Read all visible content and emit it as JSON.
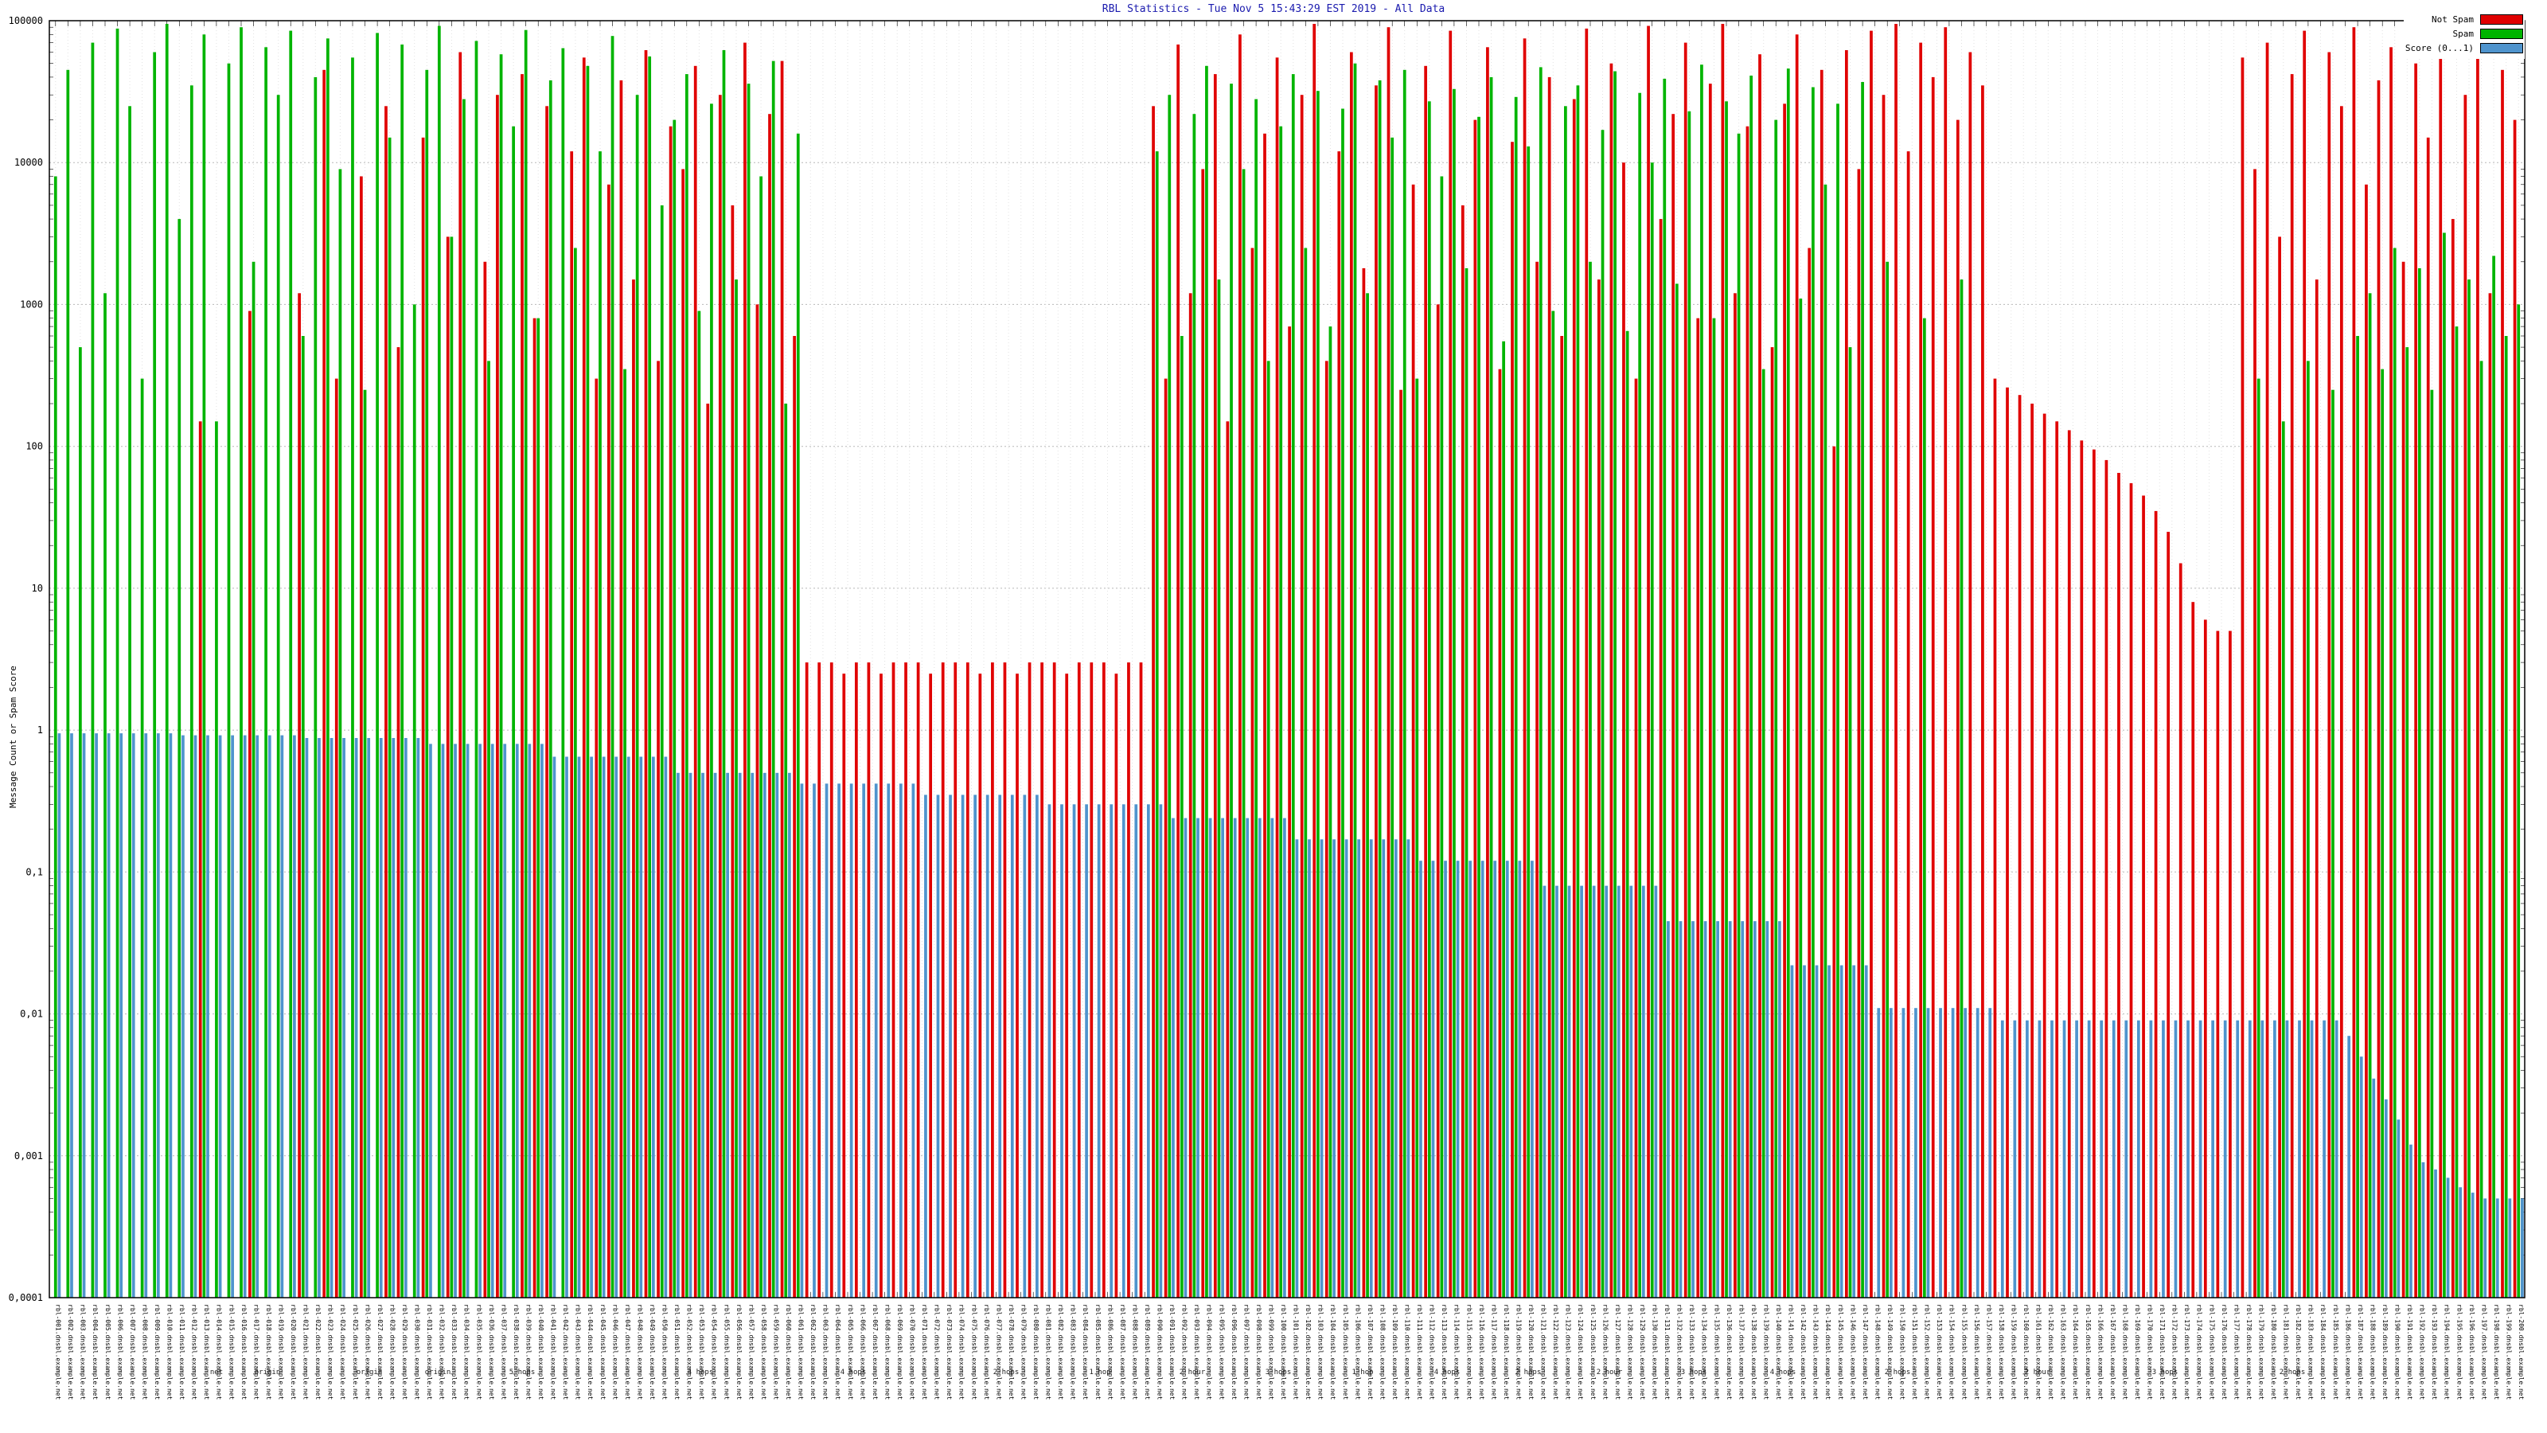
{
  "title": "RBL Statistics - Tue Nov 5 15:43:29 EST 2019 - All Data",
  "legend": [
    {
      "label": "Not Spam",
      "color": "#e00000"
    },
    {
      "label": "Spam",
      "color": "#00b400"
    },
    {
      "label": "Score (0...1)",
      "color": "#4f94cd"
    }
  ],
  "y_axis": {
    "label": "Message Count or Spam Score",
    "ticks": [
      "100000",
      "10000",
      "1000",
      "100",
      "10",
      "1",
      "0,1",
      "0,01",
      "0,001",
      "0,0001"
    ],
    "values": [
      100000,
      10000,
      1000,
      100,
      10,
      1,
      0.1,
      0.01,
      0.001,
      0.0001
    ]
  },
  "chart_data": {
    "type": "bar",
    "scale": "log",
    "ylim": [
      0.0001,
      100000
    ],
    "grid": true,
    "legend_position": "top-right",
    "categories": [
      "rbl-001.dnsbl.example.net",
      "rbl-002.dnsbl.example.net",
      "rbl-003.dnsbl.example.net",
      "rbl-004.dnsbl.example.net",
      "rbl-005.dnsbl.example.net",
      "rbl-006.dnsbl.example.net",
      "rbl-007.dnsbl.example.net",
      "rbl-008.dnsbl.example.net",
      "rbl-009.dnsbl.example.net",
      "rbl-010.dnsbl.example.net",
      "rbl-011.dnsbl.example.net",
      "rbl-012.dnsbl.example.net",
      "rbl-013.dnsbl.example.net",
      "rbl-014.dnsbl.example.net",
      "rbl-015.dnsbl.example.net",
      "rbl-016.dnsbl.example.net",
      "rbl-017.dnsbl.example.net",
      "rbl-018.dnsbl.example.net",
      "rbl-019.dnsbl.example.net",
      "rbl-020.dnsbl.example.net",
      "rbl-021.dnsbl.example.net",
      "rbl-022.dnsbl.example.net",
      "rbl-023.dnsbl.example.net",
      "rbl-024.dnsbl.example.net",
      "rbl-025.dnsbl.example.net",
      "rbl-026.dnsbl.example.net",
      "rbl-027.dnsbl.example.net",
      "rbl-028.dnsbl.example.net",
      "rbl-029.dnsbl.example.net",
      "rbl-030.dnsbl.example.net",
      "rbl-031.dnsbl.example.net",
      "rbl-032.dnsbl.example.net",
      "rbl-033.dnsbl.example.net",
      "rbl-034.dnsbl.example.net",
      "rbl-035.dnsbl.example.net",
      "rbl-036.dnsbl.example.net",
      "rbl-037.dnsbl.example.net",
      "rbl-038.dnsbl.example.net",
      "rbl-039.dnsbl.example.net",
      "rbl-040.dnsbl.example.net",
      "rbl-041.dnsbl.example.net",
      "rbl-042.dnsbl.example.net",
      "rbl-043.dnsbl.example.net",
      "rbl-044.dnsbl.example.net",
      "rbl-045.dnsbl.example.net",
      "rbl-046.dnsbl.example.net",
      "rbl-047.dnsbl.example.net",
      "rbl-048.dnsbl.example.net",
      "rbl-049.dnsbl.example.net",
      "rbl-050.dnsbl.example.net",
      "rbl-051.dnsbl.example.net",
      "rbl-052.dnsbl.example.net",
      "rbl-053.dnsbl.example.net",
      "rbl-054.dnsbl.example.net",
      "rbl-055.dnsbl.example.net",
      "rbl-056.dnsbl.example.net",
      "rbl-057.dnsbl.example.net",
      "rbl-058.dnsbl.example.net",
      "rbl-059.dnsbl.example.net",
      "rbl-060.dnsbl.example.net",
      "rbl-061.dnsbl.example.net",
      "rbl-062.dnsbl.example.net",
      "rbl-063.dnsbl.example.net",
      "rbl-064.dnsbl.example.net",
      "rbl-065.dnsbl.example.net",
      "rbl-066.dnsbl.example.net",
      "rbl-067.dnsbl.example.net",
      "rbl-068.dnsbl.example.net",
      "rbl-069.dnsbl.example.net",
      "rbl-070.dnsbl.example.net",
      "rbl-071.dnsbl.example.net",
      "rbl-072.dnsbl.example.net",
      "rbl-073.dnsbl.example.net",
      "rbl-074.dnsbl.example.net",
      "rbl-075.dnsbl.example.net",
      "rbl-076.dnsbl.example.net",
      "rbl-077.dnsbl.example.net",
      "rbl-078.dnsbl.example.net",
      "rbl-079.dnsbl.example.net",
      "rbl-080.dnsbl.example.net",
      "rbl-081.dnsbl.example.net",
      "rbl-082.dnsbl.example.net",
      "rbl-083.dnsbl.example.net",
      "rbl-084.dnsbl.example.net",
      "rbl-085.dnsbl.example.net",
      "rbl-086.dnsbl.example.net",
      "rbl-087.dnsbl.example.net",
      "rbl-088.dnsbl.example.net",
      "rbl-089.dnsbl.example.net",
      "rbl-090.dnsbl.example.net",
      "rbl-091.dnsbl.example.net",
      "rbl-092.dnsbl.example.net",
      "rbl-093.dnsbl.example.net",
      "rbl-094.dnsbl.example.net",
      "rbl-095.dnsbl.example.net",
      "rbl-096.dnsbl.example.net",
      "rbl-097.dnsbl.example.net",
      "rbl-098.dnsbl.example.net",
      "rbl-099.dnsbl.example.net",
      "rbl-100.dnsbl.example.net",
      "rbl-101.dnsbl.example.net",
      "rbl-102.dnsbl.example.net",
      "rbl-103.dnsbl.example.net",
      "rbl-104.dnsbl.example.net",
      "rbl-105.dnsbl.example.net",
      "rbl-106.dnsbl.example.net",
      "rbl-107.dnsbl.example.net",
      "rbl-108.dnsbl.example.net",
      "rbl-109.dnsbl.example.net",
      "rbl-110.dnsbl.example.net",
      "rbl-111.dnsbl.example.net",
      "rbl-112.dnsbl.example.net",
      "rbl-113.dnsbl.example.net",
      "rbl-114.dnsbl.example.net",
      "rbl-115.dnsbl.example.net",
      "rbl-116.dnsbl.example.net",
      "rbl-117.dnsbl.example.net",
      "rbl-118.dnsbl.example.net",
      "rbl-119.dnsbl.example.net",
      "rbl-120.dnsbl.example.net",
      "rbl-121.dnsbl.example.net",
      "rbl-122.dnsbl.example.net",
      "rbl-123.dnsbl.example.net",
      "rbl-124.dnsbl.example.net",
      "rbl-125.dnsbl.example.net",
      "rbl-126.dnsbl.example.net",
      "rbl-127.dnsbl.example.net",
      "rbl-128.dnsbl.example.net",
      "rbl-129.dnsbl.example.net",
      "rbl-130.dnsbl.example.net",
      "rbl-131.dnsbl.example.net",
      "rbl-132.dnsbl.example.net",
      "rbl-133.dnsbl.example.net",
      "rbl-134.dnsbl.example.net",
      "rbl-135.dnsbl.example.net",
      "rbl-136.dnsbl.example.net",
      "rbl-137.dnsbl.example.net",
      "rbl-138.dnsbl.example.net",
      "rbl-139.dnsbl.example.net",
      "rbl-140.dnsbl.example.net",
      "rbl-141.dnsbl.example.net",
      "rbl-142.dnsbl.example.net",
      "rbl-143.dnsbl.example.net",
      "rbl-144.dnsbl.example.net",
      "rbl-145.dnsbl.example.net",
      "rbl-146.dnsbl.example.net",
      "rbl-147.dnsbl.example.net",
      "rbl-148.dnsbl.example.net",
      "rbl-149.dnsbl.example.net",
      "rbl-150.dnsbl.example.net",
      "rbl-151.dnsbl.example.net",
      "rbl-152.dnsbl.example.net",
      "rbl-153.dnsbl.example.net",
      "rbl-154.dnsbl.example.net",
      "rbl-155.dnsbl.example.net",
      "rbl-156.dnsbl.example.net",
      "rbl-157.dnsbl.example.net",
      "rbl-158.dnsbl.example.net",
      "rbl-159.dnsbl.example.net",
      "rbl-160.dnsbl.example.net",
      "rbl-161.dnsbl.example.net",
      "rbl-162.dnsbl.example.net",
      "rbl-163.dnsbl.example.net",
      "rbl-164.dnsbl.example.net",
      "rbl-165.dnsbl.example.net",
      "rbl-166.dnsbl.example.net",
      "rbl-167.dnsbl.example.net",
      "rbl-168.dnsbl.example.net",
      "rbl-169.dnsbl.example.net",
      "rbl-170.dnsbl.example.net",
      "rbl-171.dnsbl.example.net",
      "rbl-172.dnsbl.example.net",
      "rbl-173.dnsbl.example.net",
      "rbl-174.dnsbl.example.net",
      "rbl-175.dnsbl.example.net",
      "rbl-176.dnsbl.example.net",
      "rbl-177.dnsbl.example.net",
      "rbl-178.dnsbl.example.net",
      "rbl-179.dnsbl.example.net",
      "rbl-180.dnsbl.example.net",
      "rbl-181.dnsbl.example.net",
      "rbl-182.dnsbl.example.net",
      "rbl-183.dnsbl.example.net",
      "rbl-184.dnsbl.example.net",
      "rbl-185.dnsbl.example.net",
      "rbl-186.dnsbl.example.net",
      "rbl-187.dnsbl.example.net",
      "rbl-188.dnsbl.example.net",
      "rbl-189.dnsbl.example.net",
      "rbl-190.dnsbl.example.net",
      "rbl-191.dnsbl.example.net",
      "rbl-192.dnsbl.example.net",
      "rbl-193.dnsbl.example.net",
      "rbl-194.dnsbl.example.net",
      "rbl-195.dnsbl.example.net",
      "rbl-196.dnsbl.example.net",
      "rbl-197.dnsbl.example.net",
      "rbl-198.dnsbl.example.net",
      "rbl-199.dnsbl.example.net",
      "rbl-200.dnsbl.example.net"
    ],
    "series": [
      {
        "name": "Not Spam",
        "color": "#e00000",
        "values": [
          0,
          0,
          0,
          0,
          0,
          0,
          0,
          0,
          0,
          0,
          0,
          0,
          150,
          0,
          0,
          0,
          900,
          0,
          0,
          0,
          1200,
          0,
          45000,
          300,
          0,
          8000,
          0,
          25000,
          500,
          0,
          15000,
          0,
          3000,
          60000,
          0,
          2000,
          30000,
          0,
          42000,
          800,
          25000,
          0,
          12000,
          55000,
          300,
          7000,
          38000,
          1500,
          62000,
          400,
          18000,
          9000,
          48000,
          200,
          30000,
          5000,
          70000,
          1000,
          22000,
          52000,
          600,
          3,
          3,
          3,
          2.5,
          3,
          3,
          2.5,
          3,
          3,
          3,
          2.5,
          3,
          3,
          3,
          2.5,
          3,
          3,
          2.5,
          3,
          3,
          3,
          2.5,
          3,
          3,
          3,
          2.5,
          3,
          3,
          25000,
          300,
          68000,
          1200,
          9000,
          42000,
          150,
          80000,
          2500,
          16000,
          55000,
          700,
          30000,
          95000,
          400,
          12000,
          60000,
          1800,
          35000,
          90000,
          250,
          7000,
          48000,
          1000,
          85000,
          5000,
          20000,
          65000,
          350,
          14000,
          75000,
          2000,
          40000,
          600,
          28000,
          88000,
          1500,
          50000,
          10000,
          300,
          92000,
          4000,
          22000,
          70000,
          800,
          36000,
          95000,
          1200,
          18000,
          58000,
          500,
          26000,
          80000,
          2500,
          45000,
          100,
          62000,
          9000,
          85000,
          30000,
          95000,
          12000,
          70000,
          40000,
          90000,
          20000,
          60000,
          35000,
          300,
          260,
          230,
          200,
          170,
          150,
          130,
          110,
          95,
          80,
          65,
          55,
          45,
          35,
          25,
          15,
          8,
          6,
          5,
          5,
          55000,
          9000,
          70000,
          3000,
          42000,
          85000,
          1500,
          60000,
          25000,
          90000,
          7000,
          38000,
          65000,
          2000,
          50000,
          15000,
          75000,
          4000,
          30000,
          58000,
          1200,
          45000,
          20000
        ]
      },
      {
        "name": "Spam",
        "color": "#00b400",
        "values": [
          8000,
          45000,
          500,
          70000,
          1200,
          88000,
          25000,
          300,
          60000,
          95000,
          4000,
          35000,
          80000,
          150,
          50000,
          90000,
          2000,
          65000,
          30000,
          85000,
          600,
          40000,
          75000,
          9000,
          55000,
          250,
          82000,
          15000,
          68000,
          1000,
          45000,
          92000,
          3000,
          28000,
          72000,
          400,
          58000,
          18000,
          86000,
          800,
          38000,
          64000,
          2500,
          48000,
          12000,
          78000,
          350,
          30000,
          56000,
          5000,
          20000,
          42000,
          900,
          26000,
          62000,
          1500,
          36000,
          8000,
          52000,
          200,
          16000,
          0,
          0,
          0,
          0,
          0,
          0,
          0,
          0,
          0,
          0,
          0,
          0,
          0,
          0,
          0,
          0,
          0,
          0,
          0,
          0,
          0,
          0,
          0,
          0,
          0,
          0,
          0,
          0,
          12000,
          30000,
          600,
          22000,
          48000,
          1500,
          36000,
          9000,
          28000,
          400,
          18000,
          42000,
          2500,
          32000,
          700,
          24000,
          50000,
          1200,
          38000,
          15000,
          45000,
          300,
          27000,
          8000,
          33000,
          1800,
          21000,
          40000,
          550,
          29000,
          13000,
          47000,
          900,
          25000,
          35000,
          2000,
          17000,
          44000,
          650,
          31000,
          10000,
          39000,
          1400,
          23000,
          49000,
          800,
          27000,
          16000,
          41000,
          350,
          20000,
          46000,
          1100,
          34000,
          7000,
          26000,
          500,
          37000,
          0,
          2000,
          0,
          0,
          800,
          0,
          0,
          1500,
          0,
          0,
          0,
          0,
          0,
          0,
          0,
          0,
          0,
          0,
          0,
          0,
          0,
          0,
          0,
          0,
          0,
          0,
          0,
          0,
          0,
          0,
          0,
          300,
          0,
          150,
          0,
          400,
          0,
          250,
          0,
          600,
          1200,
          350,
          2500,
          500,
          1800,
          250,
          3200,
          700,
          1500,
          400,
          2200,
          600,
          1000
        ]
      },
      {
        "name": "Score (0...1)",
        "color": "#4f94cd",
        "values": [
          0.95,
          0.95,
          0.95,
          0.95,
          0.95,
          0.95,
          0.95,
          0.95,
          0.95,
          0.95,
          0.92,
          0.92,
          0.92,
          0.92,
          0.92,
          0.92,
          0.92,
          0.92,
          0.92,
          0.92,
          0.88,
          0.88,
          0.88,
          0.88,
          0.88,
          0.88,
          0.88,
          0.88,
          0.88,
          0.88,
          0.8,
          0.8,
          0.8,
          0.8,
          0.8,
          0.8,
          0.8,
          0.8,
          0.8,
          0.8,
          0.65,
          0.65,
          0.65,
          0.65,
          0.65,
          0.65,
          0.65,
          0.65,
          0.65,
          0.65,
          0.5,
          0.5,
          0.5,
          0.5,
          0.5,
          0.5,
          0.5,
          0.5,
          0.5,
          0.5,
          0.42,
          0.42,
          0.42,
          0.42,
          0.42,
          0.42,
          0.42,
          0.42,
          0.42,
          0.42,
          0.35,
          0.35,
          0.35,
          0.35,
          0.35,
          0.35,
          0.35,
          0.35,
          0.35,
          0.35,
          0.3,
          0.3,
          0.3,
          0.3,
          0.3,
          0.3,
          0.3,
          0.3,
          0.3,
          0.3,
          0.24,
          0.24,
          0.24,
          0.24,
          0.24,
          0.24,
          0.24,
          0.24,
          0.24,
          0.24,
          0.17,
          0.17,
          0.17,
          0.17,
          0.17,
          0.17,
          0.17,
          0.17,
          0.17,
          0.17,
          0.12,
          0.12,
          0.12,
          0.12,
          0.12,
          0.12,
          0.12,
          0.12,
          0.12,
          0.12,
          0.08,
          0.08,
          0.08,
          0.08,
          0.08,
          0.08,
          0.08,
          0.08,
          0.08,
          0.08,
          0.045,
          0.045,
          0.045,
          0.045,
          0.045,
          0.045,
          0.045,
          0.045,
          0.045,
          0.045,
          0.022,
          0.022,
          0.022,
          0.022,
          0.022,
          0.022,
          0.022,
          0.011,
          0.011,
          0.011,
          0.011,
          0.011,
          0.011,
          0.011,
          0.011,
          0.011,
          0.011,
          0.009,
          0.009,
          0.009,
          0.009,
          0.009,
          0.009,
          0.009,
          0.009,
          0.009,
          0.009,
          0.009,
          0.009,
          0.009,
          0.009,
          0.009,
          0.009,
          0.009,
          0.009,
          0.009,
          0.009,
          0.009,
          0.009,
          0.009,
          0.009,
          0.009,
          0.009,
          0.009,
          0.009,
          0.007,
          0.005,
          0.0035,
          0.0025,
          0.0018,
          0.0012,
          0.0009,
          0.0008,
          0.0007,
          0.0006,
          0.00055,
          0.0005,
          0.0005,
          0.0005,
          0.0005
        ]
      }
    ],
    "x_axis_annotations": [
      {
        "x": 0.085,
        "text": "net"
      },
      {
        "x": 0.105,
        "text": "origin"
      },
      {
        "x": 0.145,
        "text": "origin"
      },
      {
        "x": 0.172,
        "text": "origin"
      },
      {
        "x": 0.205,
        "text": "5 hops"
      },
      {
        "x": 0.275,
        "text": "4 hops"
      },
      {
        "x": 0.335,
        "text": "4 hops"
      },
      {
        "x": 0.395,
        "text": "2 hops"
      },
      {
        "x": 0.432,
        "text": "1 hop"
      },
      {
        "x": 0.468,
        "text": "2 hour"
      },
      {
        "x": 0.502,
        "text": "3 hops"
      },
      {
        "x": 0.535,
        "text": "1 hop"
      },
      {
        "x": 0.568,
        "text": "4 hops"
      },
      {
        "x": 0.6,
        "text": "2 hops"
      },
      {
        "x": 0.632,
        "text": "2 hour"
      },
      {
        "x": 0.665,
        "text": "3 hops"
      },
      {
        "x": 0.7,
        "text": "4 hops"
      },
      {
        "x": 0.745,
        "text": "2 hops"
      },
      {
        "x": 0.8,
        "text": "2 hour"
      },
      {
        "x": 0.85,
        "text": "3 hops"
      },
      {
        "x": 0.9,
        "text": "2 hops"
      }
    ]
  }
}
